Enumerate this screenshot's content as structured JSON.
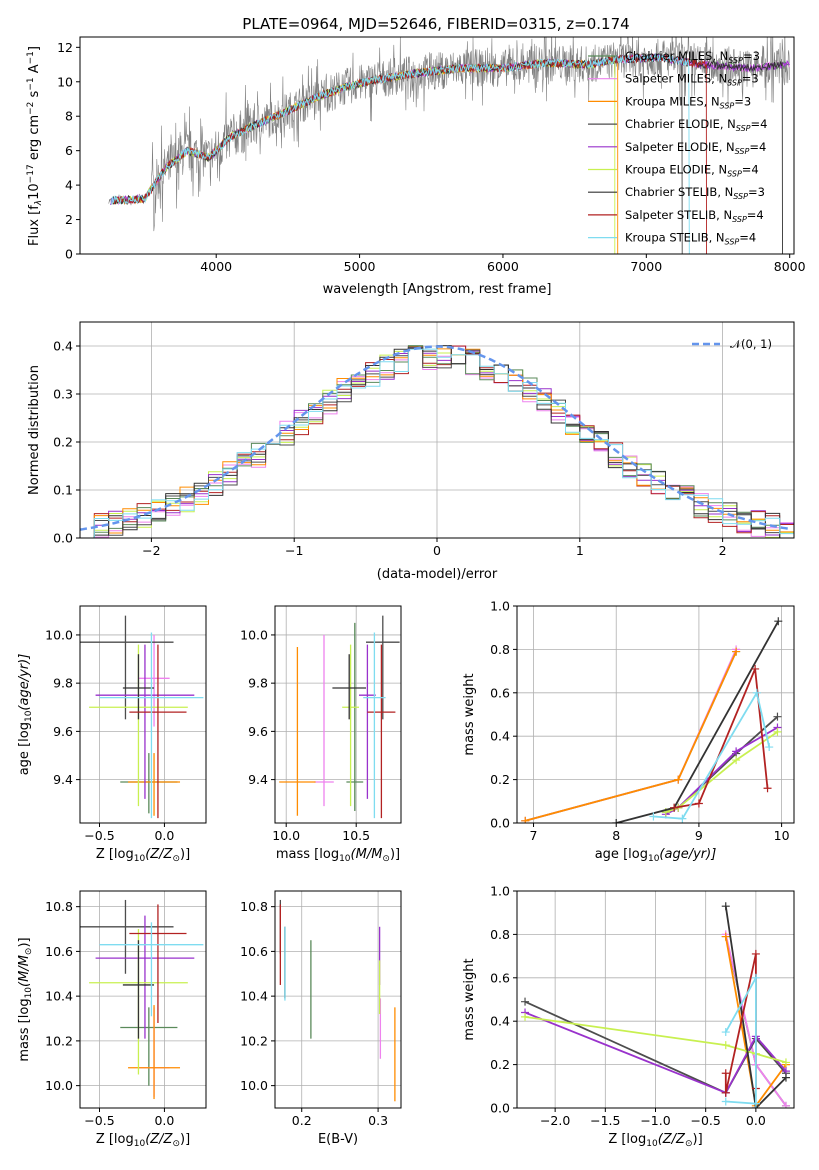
{
  "figure": {
    "title": "PLATE=0964, MJD=52646, FIBERID=0315, z=0.174"
  },
  "series_names": [
    "Chabrier MILES, N$_{SSP}$=3",
    "Salpeter MILES, N$_{SSP}$=3",
    "Kroupa MILES, N$_{SSP}$=3",
    "Chabrier ELODIE, N$_{SSP}$=4",
    "Salpeter ELODIE, N$_{SSP}$=4",
    "Kroupa ELODIE, N$_{SSP}$=4",
    "Chabrier STELIB, N$_{SSP}$=3",
    "Salpeter STELIB, N$_{SSP}$=4",
    "Kroupa STELIB, N$_{SSP}$=4"
  ],
  "legend_display": [
    {
      "pre": "Chabrier MILES, N",
      "sub": "SSP",
      "post": "=3"
    },
    {
      "pre": "Salpeter MILES, N",
      "sub": "SSP",
      "post": "=3"
    },
    {
      "pre": "Kroupa MILES, N",
      "sub": "SSP",
      "post": "=3"
    },
    {
      "pre": "Chabrier ELODIE, N",
      "sub": "SSP",
      "post": "=4"
    },
    {
      "pre": "Salpeter ELODIE, N",
      "sub": "SSP",
      "post": "=4"
    },
    {
      "pre": "Kroupa ELODIE, N",
      "sub": "SSP",
      "post": "=4"
    },
    {
      "pre": "Chabrier STELIB, N",
      "sub": "SSP",
      "post": "=3"
    },
    {
      "pre": "Salpeter STELIB, N",
      "sub": "SSP",
      "post": "=4"
    },
    {
      "pre": "Kroupa STELIB, N",
      "sub": "SSP",
      "post": "=4"
    }
  ],
  "series_colors": [
    "#5a8a5a",
    "#ee82ee",
    "#ff8c00",
    "#4d4d4d",
    "#9932cc",
    "#c8f050",
    "#333333",
    "#b22222",
    "#7fdcf0"
  ],
  "chart_data": [
    {
      "type": "line",
      "title": "PLATE=0964, MJD=52646, FIBERID=0315, z=0.174",
      "xlabel": "wavelength [Angstrom, rest frame]",
      "ylabel_parts": {
        "a": "Flux [f",
        "b": "λ",
        "c": "10",
        "d": "−17",
        "e": " erg cm",
        "f": "−2",
        "g": " s",
        "h": "−1",
        "i": " A",
        "j": "−1",
        "k": "]"
      },
      "xlim": [
        3050,
        8030
      ],
      "ylim": [
        0,
        12.6
      ],
      "xticks": [
        "4000",
        "5000",
        "6000",
        "7000",
        "8000"
      ],
      "yticks": [
        "0",
        "2",
        "4",
        "6",
        "8",
        "10",
        "12"
      ],
      "legend": "top-right",
      "data_continuum": [
        [
          3250,
          3.1
        ],
        [
          3500,
          3.2
        ],
        [
          3650,
          5.0
        ],
        [
          3800,
          6.0
        ],
        [
          3950,
          5.6
        ],
        [
          4100,
          6.8
        ],
        [
          4300,
          7.6
        ],
        [
          4500,
          8.3
        ],
        [
          4700,
          9.1
        ],
        [
          4900,
          9.7
        ],
        [
          5100,
          10.1
        ],
        [
          5400,
          10.5
        ],
        [
          5700,
          10.8
        ],
        [
          6000,
          10.8
        ],
        [
          6300,
          11.1
        ],
        [
          6600,
          11.0
        ],
        [
          6800,
          11.3
        ],
        [
          7100,
          11.4
        ],
        [
          7400,
          11.0
        ],
        [
          7700,
          10.8
        ],
        [
          8000,
          11.0
        ]
      ],
      "data_series_name": "",
      "series_offsets_note": ""
    },
    {
      "type": "histogram",
      "xlabel": "(data-model)/error",
      "ylabel": "Normed distribution",
      "xlim": [
        -2.5,
        2.5
      ],
      "ylim": [
        0,
        0.45
      ],
      "xticks": [
        "−2",
        "−1",
        "0",
        "1",
        "2"
      ],
      "yticks": [
        "0.0",
        "0.1",
        "0.2",
        "0.3",
        "0.4"
      ],
      "bin_width": 0.1,
      "reference_curve": {
        "name": "N(0,1)",
        "label_display": "𝒩(0, 1)"
      },
      "legend": "top-right"
    },
    {
      "type": "errorbar",
      "xlabel_parts": {
        "a": "Z [log",
        "b": "10",
        "c": "(Z/Z",
        "d": "⊙",
        "e": ")]"
      },
      "ylabel_parts": {
        "a": "age  [log",
        "b": "10",
        "c": "(age/yr)]"
      },
      "xlim": [
        -0.65,
        0.32
      ],
      "ylim": [
        9.22,
        10.12
      ],
      "xticks": [
        "−0.5",
        "0.0"
      ],
      "yticks": [
        "9.4",
        "9.6",
        "9.8",
        "10.0"
      ],
      "points": [
        {
          "x": -0.12,
          "y": 9.39,
          "xerr": 0.22,
          "yerr": [
            0.13,
            0.12
          ]
        },
        {
          "x": -0.08,
          "y": 9.82,
          "xerr": 0.12,
          "yerr": [
            0.2,
            0.18
          ]
        },
        {
          "x": -0.08,
          "y": 9.39,
          "xerr": 0.2,
          "yerr": [
            0.14,
            0.12
          ]
        },
        {
          "x": -0.3,
          "y": 9.97,
          "xerr": 0.37,
          "yerr": [
            0.32,
            0.11
          ]
        },
        {
          "x": -0.15,
          "y": 9.75,
          "xerr": 0.38,
          "yerr": [
            0.43,
            0.21
          ]
        },
        {
          "x": -0.2,
          "y": 9.7,
          "xerr": 0.38,
          "yerr": [
            0.41,
            0.26
          ]
        },
        {
          "x": -0.2,
          "y": 9.78,
          "xerr": 0.12,
          "yerr": [
            0.13,
            0.14
          ]
        },
        {
          "x": -0.05,
          "y": 9.68,
          "xerr": 0.22,
          "yerr": [
            0.44,
            0.28
          ]
        },
        {
          "x": -0.1,
          "y": 9.74,
          "xerr": 0.4,
          "yerr": [
            0.5,
            0.27
          ]
        }
      ]
    },
    {
      "type": "errorbar",
      "xlabel_parts": {
        "a": "mass [log",
        "b": "10",
        "c": "(M/M",
        "d": "⊙",
        "e": ")]"
      },
      "xlim": [
        9.92,
        10.82
      ],
      "ylim": [
        9.22,
        10.12
      ],
      "xticks": [
        "10.0",
        "10.5"
      ],
      "yticks": [
        "9.4",
        "9.6",
        "9.8",
        "10.0"
      ],
      "points": [
        {
          "x": 10.49,
          "y": 9.39,
          "xerr": 0.06,
          "yerr": [
            0.12,
            0.66
          ]
        },
        {
          "x": 10.27,
          "y": 9.39,
          "xerr": 0.07,
          "yerr": [
            0.1,
            0.61
          ]
        },
        {
          "x": 10.08,
          "y": 9.39,
          "xerr": 0.13,
          "yerr": [
            0.14,
            0.56
          ]
        },
        {
          "x": 10.69,
          "y": 9.97,
          "xerr": 0.12,
          "yerr": [
            0.32,
            0.11
          ]
        },
        {
          "x": 10.58,
          "y": 9.75,
          "xerr": 0.06,
          "yerr": [
            0.43,
            0.21
          ]
        },
        {
          "x": 10.46,
          "y": 9.7,
          "xerr": 0.06,
          "yerr": [
            0.41,
            0.26
          ]
        },
        {
          "x": 10.45,
          "y": 9.78,
          "xerr": 0.12,
          "yerr": [
            0.13,
            0.14
          ]
        },
        {
          "x": 10.68,
          "y": 9.68,
          "xerr": 0.1,
          "yerr": [
            0.44,
            0.28
          ]
        },
        {
          "x": 10.63,
          "y": 9.74,
          "xerr": 0.08,
          "yerr": [
            0.5,
            0.27
          ]
        }
      ]
    },
    {
      "type": "line",
      "xlabel_parts": {
        "a": "age  [log",
        "b": "10",
        "c": "(age/yr)]"
      },
      "ylabel": "mass weight",
      "xlim": [
        6.8,
        10.15
      ],
      "ylim": [
        0,
        1.0
      ],
      "xticks": [
        "7",
        "8",
        "9",
        "10"
      ],
      "yticks": [
        "0.0",
        "0.2",
        "0.4",
        "0.6",
        "0.8",
        "1.0"
      ],
      "series": [
        {
          "x": [
            6.9,
            8.75,
            9.45
          ],
          "y": [
            0.01,
            0.2,
            0.79
          ]
        },
        {
          "x": [
            6.9,
            8.75,
            9.45
          ],
          "y": [
            0.01,
            0.2,
            0.8
          ]
        },
        {
          "x": [
            6.9,
            8.75,
            9.45
          ],
          "y": [
            0.01,
            0.2,
            0.79
          ]
        },
        {
          "x": [
            8.6,
            8.75,
            9.45,
            9.95
          ],
          "y": [
            0.05,
            0.07,
            0.32,
            0.49
          ]
        },
        {
          "x": [
            8.6,
            8.75,
            9.45,
            9.95
          ],
          "y": [
            0.04,
            0.07,
            0.33,
            0.44
          ]
        },
        {
          "x": [
            8.6,
            8.75,
            9.45,
            9.95
          ],
          "y": [
            0.05,
            0.07,
            0.29,
            0.42
          ]
        },
        {
          "x": [
            8.0,
            8.7,
            9.96
          ],
          "y": [
            0.0,
            0.07,
            0.93
          ]
        },
        {
          "x": [
            8.7,
            9.0,
            9.68,
            9.83
          ],
          "y": [
            0.07,
            0.09,
            0.71,
            0.16
          ]
        },
        {
          "x": [
            8.45,
            8.8,
            9.7,
            9.85
          ],
          "y": [
            0.03,
            0.02,
            0.6,
            0.35
          ]
        }
      ]
    },
    {
      "type": "errorbar",
      "xlabel_parts": {
        "a": "Z [log",
        "b": "10",
        "c": "(Z/Z",
        "d": "⊙",
        "e": ")]"
      },
      "ylabel_parts": {
        "a": "mass [log",
        "b": "10",
        "c": "(M/M",
        "d": "⊙",
        "e": ")]"
      },
      "xlim": [
        -0.65,
        0.32
      ],
      "ylim": [
        9.9,
        10.87
      ],
      "xticks": [
        "−0.5",
        "0.0"
      ],
      "yticks": [
        "10.0",
        "10.2",
        "10.4",
        "10.6",
        "10.8"
      ],
      "points": [
        {
          "x": -0.12,
          "y": 10.26,
          "xerr": 0.22,
          "yerr": [
            0.26,
            0.09
          ]
        },
        {
          "x": -0.08,
          "y": 10.08,
          "xerr": 0.12,
          "yerr": [
            0.13,
            0.27
          ]
        },
        {
          "x": -0.08,
          "y": 10.08,
          "xerr": 0.2,
          "yerr": [
            0.14,
            0.28
          ]
        },
        {
          "x": -0.3,
          "y": 10.71,
          "xerr": 0.37,
          "yerr": [
            0.21,
            0.12
          ]
        },
        {
          "x": -0.15,
          "y": 10.57,
          "xerr": 0.38,
          "yerr": [
            0.36,
            0.19
          ]
        },
        {
          "x": -0.2,
          "y": 10.46,
          "xerr": 0.38,
          "yerr": [
            0.41,
            0.24
          ]
        },
        {
          "x": -0.2,
          "y": 10.45,
          "xerr": 0.12,
          "yerr": [
            0.24,
            0.2
          ]
        },
        {
          "x": -0.05,
          "y": 10.68,
          "xerr": 0.22,
          "yerr": [
            0.4,
            0.13
          ]
        },
        {
          "x": -0.1,
          "y": 10.63,
          "xerr": 0.4,
          "yerr": [
            0.32,
            0.1
          ]
        }
      ]
    },
    {
      "type": "errorbar",
      "xlabel": "E(B-V)",
      "xlim": [
        0.165,
        0.33
      ],
      "ylim": [
        9.9,
        10.87
      ],
      "xticks": [
        "0.2",
        "0.3"
      ],
      "yticks": [
        "10.0",
        "10.2",
        "10.4",
        "10.6",
        "10.8"
      ],
      "points": [
        {
          "x": 0.212,
          "y": 10.43,
          "yerr": [
            0.22,
            0.22
          ]
        },
        {
          "x": 0.303,
          "y": 10.24,
          "yerr": [
            0.12,
            0.15
          ]
        },
        {
          "x": 0.322,
          "y": 10.15,
          "yerr": [
            0.22,
            0.2
          ]
        },
        {
          "x": 0.172,
          "y": 10.71,
          "yerr": [
            0.12,
            0.12
          ]
        },
        {
          "x": 0.302,
          "y": 10.57,
          "yerr": [
            0.12,
            0.14
          ]
        },
        {
          "x": 0.302,
          "y": 10.46,
          "yerr": [
            0.14,
            0.1
          ]
        },
        {
          "x": 0.178,
          "y": 10.55,
          "yerr": [
            0.16,
            0.16
          ]
        },
        {
          "x": 0.172,
          "y": 10.68,
          "yerr": [
            0.23,
            0.13
          ]
        },
        {
          "x": 0.178,
          "y": 10.55,
          "yerr": [
            0.17,
            0.16
          ]
        }
      ]
    },
    {
      "type": "line",
      "xlabel_parts": {
        "a": "Z [log",
        "b": "10",
        "c": "(Z/Z",
        "d": "⊙",
        "e": ")]"
      },
      "ylabel": "mass weight",
      "xlim": [
        -2.38,
        0.38
      ],
      "ylim": [
        0,
        1.0
      ],
      "xticks": [
        "−2.0",
        "−1.5",
        "−1.0",
        "−0.5",
        "0.0"
      ],
      "yticks": [
        "0.0",
        "0.2",
        "0.4",
        "0.6",
        "0.8",
        "1.0"
      ],
      "series": [
        {
          "x": [
            -0.3,
            0.0,
            0.3
          ],
          "y": [
            0.79,
            0.2,
            0.01
          ]
        },
        {
          "x": [
            -0.3,
            0.0,
            0.3
          ],
          "y": [
            0.8,
            0.2,
            0.01
          ]
        },
        {
          "x": [
            -0.3,
            0.0,
            0.3
          ],
          "y": [
            0.79,
            0.01,
            0.2
          ]
        },
        {
          "x": [
            -2.3,
            -0.3,
            0.0,
            0.3
          ],
          "y": [
            0.49,
            0.07,
            0.32,
            0.16
          ]
        },
        {
          "x": [
            -2.3,
            -0.3,
            0.0,
            0.3
          ],
          "y": [
            0.44,
            0.07,
            0.33,
            0.17
          ]
        },
        {
          "x": [
            -2.3,
            -0.3,
            0.0,
            0.3
          ],
          "y": [
            0.42,
            0.29,
            0.25,
            0.21
          ]
        },
        {
          "x": [
            -0.3,
            0.0,
            0.3
          ],
          "y": [
            0.93,
            0.0,
            0.14
          ]
        },
        {
          "x": [
            -0.3,
            -0.3,
            0.0,
            0.0
          ],
          "y": [
            0.16,
            0.07,
            0.71,
            0.09
          ]
        },
        {
          "x": [
            -0.3,
            0.0,
            0.0,
            -0.3
          ],
          "y": [
            0.35,
            0.6,
            0.02,
            0.03
          ]
        }
      ]
    }
  ]
}
